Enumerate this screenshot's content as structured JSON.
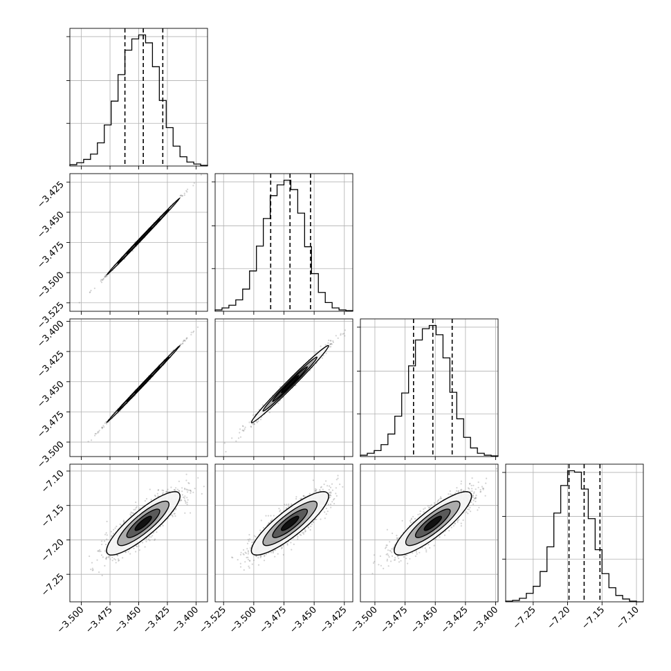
{
  "chart_data": {
    "type": "corner",
    "parameters": 4,
    "grid": true,
    "quantiles": [
      0.16,
      0.5,
      0.84
    ],
    "hist_bins": 20,
    "histograms": [
      {
        "param": 0,
        "range": [
          -3.51,
          -3.39
        ],
        "counts": [
          2,
          5,
          10,
          18,
          35,
          62,
          98,
          138,
          175,
          192,
          198,
          186,
          150,
          99,
          58,
          30,
          14,
          6,
          3,
          1
        ],
        "quantile_values": [
          -3.462,
          -3.446,
          -3.429
        ],
        "x_ticks": [
          -3.5,
          -3.475,
          -3.45,
          -3.425,
          -3.4
        ],
        "x_tick_labels": [
          "−3.500",
          "−3.475",
          "−3.450",
          "−3.425",
          "−3.400"
        ]
      },
      {
        "param": 1,
        "range": [
          -3.532,
          -3.418
        ],
        "counts": [
          2,
          5,
          9,
          17,
          33,
          60,
          97,
          138,
          172,
          188,
          195,
          181,
          146,
          96,
          56,
          28,
          13,
          5,
          2,
          1
        ],
        "quantile_values": [
          -3.486,
          -3.47,
          -3.453
        ],
        "x_ticks": [
          -3.525,
          -3.5,
          -3.475,
          -3.45,
          -3.425
        ],
        "x_tick_labels": [
          "−3.525",
          "−3.500",
          "−3.475",
          "−3.450",
          "−3.425"
        ]
      },
      {
        "param": 2,
        "range": [
          -3.512,
          -3.398
        ],
        "counts": [
          2,
          5,
          9,
          18,
          34,
          61,
          96,
          137,
          176,
          193,
          198,
          184,
          149,
          97,
          57,
          29,
          13,
          5,
          2,
          1
        ],
        "quantile_values": [
          -3.468,
          -3.452,
          -3.436
        ],
        "x_ticks": [
          -3.5,
          -3.475,
          -3.45,
          -3.425,
          -3.4
        ],
        "x_tick_labels": [
          "−3.500",
          "−3.475",
          "−3.450",
          "−3.425",
          "−3.400"
        ]
      },
      {
        "param": 3,
        "range": [
          -7.29,
          -7.09
        ],
        "counts": [
          1,
          2,
          5,
          12,
          22,
          43,
          78,
          126,
          165,
          186,
          184,
          160,
          118,
          74,
          40,
          20,
          9,
          4,
          1,
          0
        ],
        "quantile_values": [
          -7.198,
          -7.176,
          -7.153
        ],
        "x_ticks": [
          -7.25,
          -7.2,
          -7.15,
          -7.1
        ],
        "x_tick_labels": [
          "−7.25",
          "−7.20",
          "−7.15",
          "−7.10"
        ]
      }
    ],
    "row_y_axes": [
      {
        "row": 1,
        "range": [
          -3.532,
          -3.418
        ],
        "ticks": [
          -3.525,
          -3.5,
          -3.475,
          -3.45,
          -3.425
        ],
        "tick_labels": [
          "−3.525",
          "−3.500",
          "−3.475",
          "−3.450",
          "−3.425"
        ]
      },
      {
        "row": 2,
        "range": [
          -3.512,
          -3.398
        ],
        "ticks": [
          -3.5,
          -3.475,
          -3.45,
          -3.425,
          -3.4
        ],
        "tick_labels": [
          "−3.500",
          "−3.475",
          "−3.450",
          "−3.425",
          "−3.400"
        ]
      },
      {
        "row": 3,
        "range": [
          -7.29,
          -7.09
        ],
        "ticks": [
          -7.25,
          -7.2,
          -7.15,
          -7.1
        ],
        "tick_labels": [
          "−7.25",
          "−7.20",
          "−7.15",
          "−7.10"
        ]
      }
    ],
    "scatter_panels": [
      {
        "row": 1,
        "col": 0,
        "center": [
          -3.446,
          -3.47
        ],
        "spread": [
          0.016,
          0.016
        ],
        "correlation": 0.999
      },
      {
        "row": 2,
        "col": 0,
        "center": [
          -3.446,
          -3.452
        ],
        "spread": [
          0.016,
          0.016
        ],
        "correlation": 0.999
      },
      {
        "row": 2,
        "col": 1,
        "center": [
          -3.47,
          -3.452
        ],
        "spread": [
          0.016,
          0.016
        ],
        "correlation": 0.99
      },
      {
        "row": 3,
        "col": 0,
        "center": [
          -3.446,
          -7.176
        ],
        "spread": [
          0.016,
          0.023
        ],
        "correlation": 0.86
      },
      {
        "row": 3,
        "col": 1,
        "center": [
          -3.47,
          -7.176
        ],
        "spread": [
          0.016,
          0.023
        ],
        "correlation": 0.86
      },
      {
        "row": 3,
        "col": 2,
        "center": [
          -3.452,
          -7.176
        ],
        "spread": [
          0.016,
          0.023
        ],
        "correlation": 0.86
      }
    ],
    "point_color": "#7f7f7f",
    "line_color": "#000000"
  }
}
